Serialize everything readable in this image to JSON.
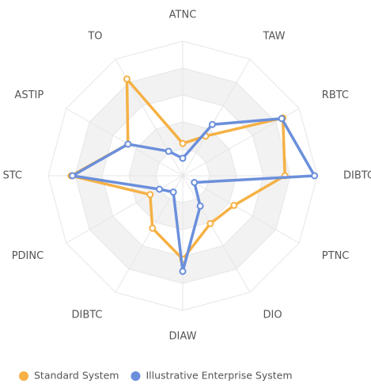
{
  "chart_data": {
    "type": "radar",
    "categories": [
      "ATNC",
      "TAW",
      "RBTC",
      "DIBTC",
      "PTNC",
      "DIO",
      "DIAW",
      "DIBTC",
      "PDINC",
      "STC",
      "ASTIP",
      "TO"
    ],
    "series": [
      {
        "name": "Standard System",
        "color": "#f5b145",
        "values": [
          24,
          34,
          86,
          76,
          44,
          41,
          62,
          45,
          28,
          83,
          47,
          83
        ]
      },
      {
        "name": "Illustrative Enterprise System",
        "color": "#6b8fdb",
        "values": [
          13,
          44,
          85,
          98,
          10,
          26,
          71,
          14,
          20,
          82,
          47,
          21
        ]
      }
    ],
    "ylim": [
      0,
      100
    ],
    "yticks": [
      20,
      40,
      60,
      80,
      100
    ],
    "grid": true,
    "legend": "bottom"
  }
}
